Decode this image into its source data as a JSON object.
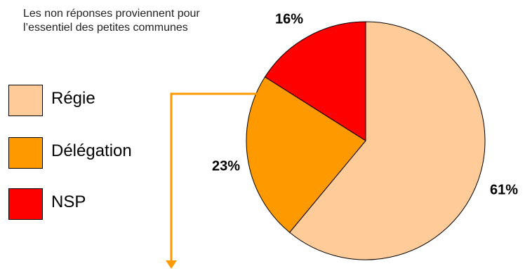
{
  "note": "Les non réponses proviennent pour l’essentiel des petites communes",
  "chart_data": {
    "type": "pie",
    "slices": [
      {
        "label": "Régie",
        "value": 61,
        "display": "61%",
        "color": "#FFCC99"
      },
      {
        "label": "Délégation",
        "value": 23,
        "display": "23%",
        "color": "#FF9900"
      },
      {
        "label": "NSP",
        "value": 16,
        "display": "16%",
        "color": "#FF0000"
      }
    ],
    "legend_position": "left"
  }
}
